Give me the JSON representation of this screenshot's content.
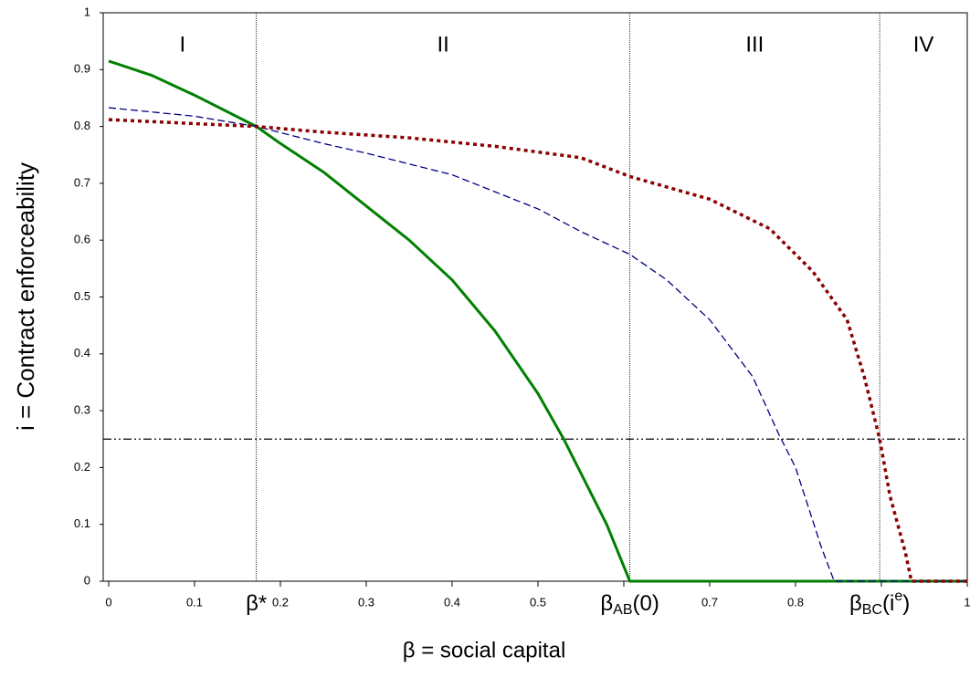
{
  "chart_data": {
    "type": "line",
    "xlabel": "β = social capital",
    "ylabel": "i = Contract enforceability",
    "xlim": [
      0,
      1
    ],
    "ylim": [
      0,
      1
    ],
    "xticks": [
      0,
      0.1,
      0.2,
      0.3,
      0.4,
      0.5,
      0.6,
      0.7,
      0.8,
      0.9,
      1
    ],
    "yticks": [
      0,
      0.1,
      0.2,
      0.3,
      0.4,
      0.5,
      0.6,
      0.7,
      0.8,
      0.9,
      1
    ],
    "regions": [
      "I",
      "II",
      "III",
      "IV"
    ],
    "vlines": [
      {
        "x": 0.172,
        "label": [
          {
            "text": "β*"
          }
        ]
      },
      {
        "x": 0.607,
        "label": [
          {
            "text": "β"
          },
          {
            "text": "AB",
            "sub": true
          },
          {
            "text": "(0)"
          }
        ]
      },
      {
        "x": 0.898,
        "label": [
          {
            "text": "β"
          },
          {
            "text": "BC",
            "sub": true
          },
          {
            "text": "(i"
          },
          {
            "text": "e",
            "sup": true
          },
          {
            "text": ")"
          }
        ]
      }
    ],
    "hline": 0.25,
    "series": [
      {
        "color": "#008000",
        "style": "solid",
        "x": [
          0,
          0.05,
          0.1,
          0.172,
          0.2,
          0.25,
          0.3,
          0.35,
          0.4,
          0.45,
          0.5,
          0.53,
          0.55,
          0.58,
          0.607,
          0.7,
          0.8,
          0.9,
          1
        ],
        "values": [
          0.915,
          0.89,
          0.855,
          0.8,
          0.77,
          0.72,
          0.66,
          0.6,
          0.53,
          0.44,
          0.33,
          0.25,
          0.19,
          0.1,
          0,
          0,
          0,
          0,
          0
        ]
      },
      {
        "color": "#000080",
        "style": "dashed",
        "x": [
          0,
          0.1,
          0.172,
          0.25,
          0.3,
          0.4,
          0.5,
          0.55,
          0.607,
          0.65,
          0.7,
          0.75,
          0.78,
          0.8,
          0.83,
          0.845,
          0.9,
          1
        ],
        "values": [
          0.833,
          0.818,
          0.8,
          0.77,
          0.753,
          0.715,
          0.655,
          0.615,
          0.575,
          0.53,
          0.46,
          0.36,
          0.26,
          0.2,
          0.06,
          0,
          0,
          0
        ]
      },
      {
        "color": "#8b0000",
        "style": "dotted",
        "x": [
          0,
          0.1,
          0.172,
          0.25,
          0.35,
          0.45,
          0.55,
          0.607,
          0.7,
          0.77,
          0.82,
          0.86,
          0.88,
          0.898,
          0.91,
          0.928,
          0.935,
          1
        ],
        "values": [
          0.812,
          0.805,
          0.8,
          0.79,
          0.78,
          0.765,
          0.745,
          0.712,
          0.672,
          0.62,
          0.545,
          0.46,
          0.36,
          0.25,
          0.15,
          0.05,
          0,
          0
        ]
      }
    ]
  }
}
